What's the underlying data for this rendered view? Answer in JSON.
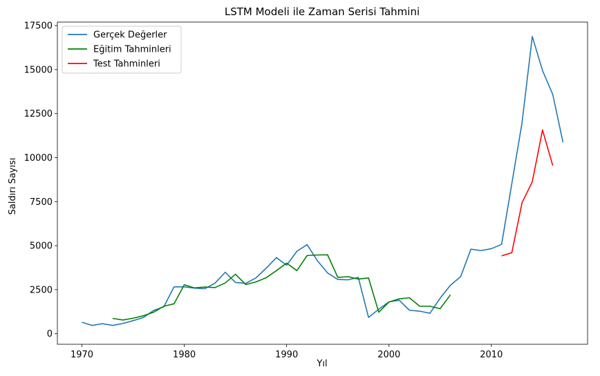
{
  "chart_data": {
    "type": "line",
    "title": "LSTM Modeli ile Zaman Serisi Tahmini",
    "xlabel": "Yıl",
    "ylabel": "Saldırı Sayısı",
    "xlim": [
      1967.6,
      2019.4
    ],
    "ylim": [
      -600,
      17700
    ],
    "xticks": [
      1970,
      1980,
      1990,
      2000,
      2010
    ],
    "yticks": [
      0,
      2500,
      5000,
      7500,
      10000,
      12500,
      15000,
      17500
    ],
    "legend_position": "upper-left",
    "grid": false,
    "series": [
      {
        "name": "Gerçek Değerler",
        "color": "#1f77b4",
        "points": [
          [
            1970,
            650
          ],
          [
            1971,
            470
          ],
          [
            1972,
            570
          ],
          [
            1973,
            470
          ],
          [
            1974,
            580
          ],
          [
            1975,
            740
          ],
          [
            1976,
            920
          ],
          [
            1977,
            1320
          ],
          [
            1978,
            1530
          ],
          [
            1979,
            2660
          ],
          [
            1980,
            2660
          ],
          [
            1981,
            2590
          ],
          [
            1982,
            2550
          ],
          [
            1983,
            2870
          ],
          [
            1984,
            3490
          ],
          [
            1985,
            2910
          ],
          [
            1986,
            2860
          ],
          [
            1987,
            3170
          ],
          [
            1988,
            3720
          ],
          [
            1989,
            4320
          ],
          [
            1990,
            3890
          ],
          [
            1991,
            4680
          ],
          [
            1992,
            5060
          ],
          [
            1993,
            4150
          ],
          [
            1994,
            3450
          ],
          [
            1995,
            3080
          ],
          [
            1996,
            3060
          ],
          [
            1997,
            3200
          ],
          [
            1998,
            930
          ],
          [
            1999,
            1390
          ],
          [
            2000,
            1810
          ],
          [
            2001,
            1900
          ],
          [
            2002,
            1330
          ],
          [
            2003,
            1280
          ],
          [
            2004,
            1160
          ],
          [
            2005,
            2020
          ],
          [
            2006,
            2750
          ],
          [
            2007,
            3240
          ],
          [
            2008,
            4800
          ],
          [
            2009,
            4720
          ],
          [
            2010,
            4830
          ],
          [
            2011,
            5070
          ],
          [
            2012,
            8520
          ],
          [
            2013,
            11990
          ],
          [
            2014,
            16880
          ],
          [
            2015,
            14950
          ],
          [
            2016,
            13590
          ],
          [
            2017,
            10870
          ]
        ]
      },
      {
        "name": "Eğitim Tahminleri",
        "color": "#008000",
        "points": [
          [
            1973,
            870
          ],
          [
            1974,
            780
          ],
          [
            1975,
            880
          ],
          [
            1976,
            1020
          ],
          [
            1977,
            1220
          ],
          [
            1978,
            1560
          ],
          [
            1979,
            1700
          ],
          [
            1980,
            2780
          ],
          [
            1981,
            2600
          ],
          [
            1982,
            2650
          ],
          [
            1983,
            2620
          ],
          [
            1984,
            2880
          ],
          [
            1985,
            3380
          ],
          [
            1986,
            2790
          ],
          [
            1987,
            2940
          ],
          [
            1988,
            3180
          ],
          [
            1989,
            3580
          ],
          [
            1990,
            4010
          ],
          [
            1991,
            3580
          ],
          [
            1992,
            4440
          ],
          [
            1993,
            4470
          ],
          [
            1994,
            4480
          ],
          [
            1995,
            3200
          ],
          [
            1996,
            3240
          ],
          [
            1997,
            3100
          ],
          [
            1998,
            3170
          ],
          [
            1999,
            1220
          ],
          [
            2000,
            1800
          ],
          [
            2001,
            1980
          ],
          [
            2002,
            2040
          ],
          [
            2003,
            1560
          ],
          [
            2004,
            1560
          ],
          [
            2005,
            1420
          ],
          [
            2006,
            2210
          ]
        ]
      },
      {
        "name": "Test Tahminleri",
        "color": "#ff0000",
        "points": [
          [
            2011,
            4420
          ],
          [
            2012,
            4600
          ],
          [
            2013,
            7440
          ],
          [
            2014,
            8630
          ],
          [
            2015,
            11570
          ],
          [
            2016,
            9550
          ]
        ]
      }
    ]
  }
}
